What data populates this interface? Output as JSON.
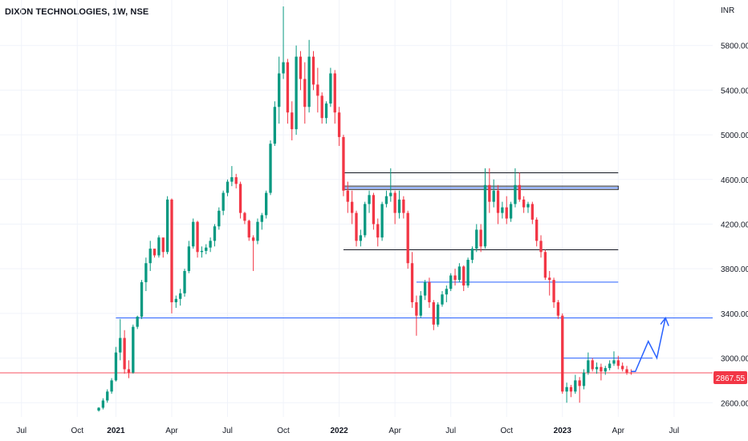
{
  "title": "DIXON TECHNOLOGIES, 1W, NSE",
  "chart_data": {
    "type": "candlestick",
    "currency": "INR",
    "last_price": "2867.55",
    "ylim": [
      2530,
      6150
    ],
    "y_ticks": [
      "5800.00",
      "5400.00",
      "5000.00",
      "4600.00",
      "4200.00",
      "3800.00",
      "3400.00",
      "3000.00",
      "2600.00"
    ],
    "y_tick_values": [
      5800,
      5400,
      5000,
      4600,
      4200,
      3800,
      3400,
      3000,
      2600
    ],
    "x_ticks": [
      {
        "label": "Jul",
        "week": -22,
        "bold": false
      },
      {
        "label": "Oct",
        "week": -9,
        "bold": false
      },
      {
        "label": "2021",
        "week": 0,
        "bold": true
      },
      {
        "label": "Apr",
        "week": 13,
        "bold": false
      },
      {
        "label": "Jul",
        "week": 26,
        "bold": false
      },
      {
        "label": "Oct",
        "week": 39,
        "bold": false
      },
      {
        "label": "2022",
        "week": 52,
        "bold": true
      },
      {
        "label": "Apr",
        "week": 65,
        "bold": false
      },
      {
        "label": "Jul",
        "week": 78,
        "bold": false
      },
      {
        "label": "Oct",
        "week": 91,
        "bold": false
      },
      {
        "label": "2023",
        "week": 104,
        "bold": true
      },
      {
        "label": "Apr",
        "week": 117,
        "bold": false
      },
      {
        "label": "Jul",
        "week": 130,
        "bold": false
      }
    ],
    "week_range": [
      -27,
      139
    ],
    "candles": [
      [
        -4,
        2530,
        2560,
        2520,
        2555
      ],
      [
        -3,
        2555,
        2640,
        2540,
        2620
      ],
      [
        -2,
        2620,
        2720,
        2600,
        2700
      ],
      [
        -1,
        2700,
        2820,
        2680,
        2800
      ],
      [
        0,
        2800,
        3100,
        2790,
        3050
      ],
      [
        1,
        3050,
        3350,
        2980,
        3180
      ],
      [
        2,
        3180,
        3250,
        2860,
        2900
      ],
      [
        3,
        2900,
        2980,
        2820,
        2870
      ],
      [
        4,
        2870,
        3300,
        2860,
        3280
      ],
      [
        5,
        3280,
        3380,
        3260,
        3370
      ],
      [
        6,
        3370,
        3700,
        3350,
        3680
      ],
      [
        7,
        3680,
        3900,
        3600,
        3850
      ],
      [
        8,
        3850,
        4050,
        3780,
        3980
      ],
      [
        9,
        3980,
        3950,
        3900,
        3920
      ],
      [
        10,
        3920,
        4100,
        3900,
        4080
      ],
      [
        11,
        4080,
        4050,
        3900,
        3950
      ],
      [
        12,
        3950,
        4450,
        3930,
        4420
      ],
      [
        13,
        4420,
        4430,
        3400,
        3500
      ],
      [
        14,
        3500,
        3560,
        3450,
        3530
      ],
      [
        15,
        3530,
        3620,
        3470,
        3580
      ],
      [
        16,
        3580,
        3800,
        3550,
        3780
      ],
      [
        17,
        3780,
        4050,
        3760,
        4000
      ],
      [
        18,
        4000,
        4250,
        3980,
        4220
      ],
      [
        19,
        4220,
        4230,
        3900,
        3950
      ],
      [
        20,
        3950,
        4000,
        3900,
        3960
      ],
      [
        21,
        3960,
        4020,
        3930,
        3990
      ],
      [
        22,
        3990,
        4080,
        3950,
        4050
      ],
      [
        23,
        4050,
        4200,
        4000,
        4180
      ],
      [
        24,
        4180,
        4350,
        4150,
        4320
      ],
      [
        25,
        4320,
        4500,
        4280,
        4480
      ],
      [
        26,
        4480,
        4600,
        4450,
        4580
      ],
      [
        27,
        4580,
        4720,
        4540,
        4620
      ],
      [
        28,
        4620,
        4650,
        4520,
        4560
      ],
      [
        29,
        4560,
        4580,
        4250,
        4300
      ],
      [
        30,
        4300,
        4310,
        4200,
        4230
      ],
      [
        31,
        4230,
        4240,
        4050,
        4080
      ],
      [
        32,
        4080,
        4100,
        3780,
        4050
      ],
      [
        33,
        4050,
        4250,
        4020,
        4220
      ],
      [
        34,
        4220,
        4300,
        4150,
        4280
      ],
      [
        35,
        4280,
        4500,
        4250,
        4480
      ],
      [
        36,
        4480,
        4950,
        4460,
        4920
      ],
      [
        37,
        4920,
        5300,
        4900,
        5250
      ],
      [
        38,
        5250,
        5700,
        5100,
        5550
      ],
      [
        39,
        5550,
        6150,
        5500,
        5650
      ],
      [
        40,
        5650,
        5680,
        5100,
        5200
      ],
      [
        41,
        5200,
        5300,
        4950,
        5050
      ],
      [
        42,
        5050,
        5800,
        5000,
        5700
      ],
      [
        43,
        5700,
        5750,
        5400,
        5500
      ],
      [
        44,
        5500,
        5650,
        5100,
        5250
      ],
      [
        45,
        5250,
        5850,
        5200,
        5700
      ],
      [
        46,
        5700,
        5750,
        5400,
        5450
      ],
      [
        47,
        5450,
        5600,
        5200,
        5350
      ],
      [
        48,
        5350,
        5380,
        5100,
        5150
      ],
      [
        49,
        5150,
        5300,
        5100,
        5280
      ],
      [
        50,
        5280,
        5600,
        5250,
        5550
      ],
      [
        51,
        5550,
        5580,
        5100,
        5200
      ],
      [
        52,
        5200,
        5250,
        4900,
        4980
      ],
      [
        53,
        4980,
        5000,
        4450,
        4500
      ],
      [
        54,
        4500,
        4580,
        4300,
        4400
      ],
      [
        55,
        4400,
        4500,
        4200,
        4300
      ],
      [
        56,
        4300,
        4320,
        4000,
        4050
      ],
      [
        57,
        4050,
        4150,
        4000,
        4100
      ],
      [
        58,
        4100,
        4400,
        4080,
        4380
      ],
      [
        59,
        4380,
        4500,
        4300,
        4460
      ],
      [
        60,
        4460,
        4480,
        4150,
        4200
      ],
      [
        61,
        4200,
        4250,
        4000,
        4080
      ],
      [
        62,
        4080,
        4400,
        4050,
        4380
      ],
      [
        63,
        4380,
        4500,
        4350,
        4450
      ],
      [
        64,
        4450,
        4700,
        4400,
        4480
      ],
      [
        65,
        4480,
        4500,
        4200,
        4300
      ],
      [
        66,
        4300,
        4500,
        4250,
        4420
      ],
      [
        67,
        4420,
        4450,
        4250,
        4300
      ],
      [
        68,
        4300,
        4320,
        3800,
        3850
      ],
      [
        69,
        3850,
        3950,
        3450,
        3500
      ],
      [
        70,
        3500,
        3560,
        3200,
        3380
      ],
      [
        71,
        3380,
        3600,
        3360,
        3560
      ],
      [
        72,
        3560,
        3700,
        3520,
        3680
      ],
      [
        73,
        3680,
        3720,
        3450,
        3500
      ],
      [
        74,
        3500,
        3520,
        3250,
        3300
      ],
      [
        75,
        3300,
        3500,
        3280,
        3480
      ],
      [
        76,
        3480,
        3600,
        3460,
        3570
      ],
      [
        77,
        3570,
        3650,
        3500,
        3620
      ],
      [
        78,
        3620,
        3760,
        3600,
        3740
      ],
      [
        79,
        3740,
        3800,
        3650,
        3700
      ],
      [
        80,
        3700,
        3850,
        3680,
        3820
      ],
      [
        81,
        3820,
        3830,
        3600,
        3650
      ],
      [
        82,
        3650,
        3900,
        3630,
        3880
      ],
      [
        83,
        3880,
        4000,
        3850,
        3980
      ],
      [
        84,
        3980,
        4200,
        3950,
        4150
      ],
      [
        85,
        4150,
        4200,
        3950,
        4000
      ],
      [
        86,
        4000,
        4700,
        3980,
        4550
      ],
      [
        87,
        4550,
        4700,
        4300,
        4400
      ],
      [
        88,
        4400,
        4600,
        4350,
        4500
      ],
      [
        89,
        4500,
        4550,
        4200,
        4300
      ],
      [
        90,
        4300,
        4400,
        4250,
        4350
      ],
      [
        91,
        4350,
        4450,
        4200,
        4250
      ],
      [
        92,
        4250,
        4400,
        4220,
        4380
      ],
      [
        93,
        4380,
        4700,
        4350,
        4550
      ],
      [
        94,
        4550,
        4660,
        4400,
        4420
      ],
      [
        95,
        4420,
        4450,
        4300,
        4350
      ],
      [
        96,
        4350,
        4400,
        4300,
        4380
      ],
      [
        97,
        4380,
        4400,
        4200,
        4240
      ],
      [
        98,
        4240,
        4260,
        4000,
        4050
      ],
      [
        99,
        4050,
        4100,
        3900,
        3950
      ],
      [
        100,
        3950,
        3970,
        3700,
        3720
      ],
      [
        101,
        3720,
        3780,
        3560,
        3700
      ],
      [
        102,
        3700,
        3720,
        3450,
        3500
      ],
      [
        103,
        3500,
        3520,
        3350,
        3380
      ],
      [
        104,
        3380,
        3400,
        2680,
        2700
      ],
      [
        105,
        2700,
        2780,
        2600,
        2740
      ],
      [
        106,
        2740,
        2760,
        2650,
        2700
      ],
      [
        107,
        2700,
        2850,
        2680,
        2800
      ],
      [
        108,
        2800,
        2830,
        2600,
        2750
      ],
      [
        109,
        2750,
        2900,
        2720,
        2870
      ],
      [
        110,
        2870,
        3050,
        2850,
        2980
      ],
      [
        111,
        2980,
        3000,
        2880,
        2900
      ],
      [
        112,
        2900,
        2960,
        2860,
        2920
      ],
      [
        113,
        2920,
        2950,
        2800,
        2880
      ],
      [
        114,
        2880,
        2930,
        2850,
        2910
      ],
      [
        115,
        2910,
        2980,
        2890,
        2950
      ],
      [
        116,
        2950,
        3060,
        2930,
        2980
      ],
      [
        117,
        2980,
        3020,
        2900,
        2930
      ],
      [
        118,
        2930,
        2960,
        2880,
        2900
      ],
      [
        119,
        2900,
        2930,
        2850,
        2870
      ],
      [
        120,
        2870,
        2900,
        2850,
        2868
      ]
    ],
    "horizontal_lines": [
      {
        "y": 3360,
        "from": 0,
        "to": 139,
        "color": "#2962ff"
      },
      {
        "y": 3680,
        "from": 70,
        "to": 117,
        "color": "#2962ff"
      },
      {
        "y": 3000,
        "from": 104,
        "to": 125,
        "color": "#2962ff"
      },
      {
        "y": 2867.55,
        "from": -27,
        "to": 139,
        "color": "#f7525f"
      },
      {
        "y": 3970,
        "from": 53,
        "to": 117,
        "color": "#131722"
      },
      {
        "y": 4660,
        "from": 53,
        "to": 117,
        "color": "#131722"
      }
    ],
    "zone_box": {
      "from": 53,
      "to": 117,
      "y_top": 4540,
      "y_bottom": 4510,
      "color": "#131722",
      "inner": "#2962ff"
    },
    "projection_path": [
      [
        120,
        2880
      ],
      [
        121,
        2880
      ],
      [
        124,
        3150
      ],
      [
        126,
        3000
      ],
      [
        128,
        3360
      ]
    ],
    "colors": {
      "up": "#089981",
      "down": "#f23645",
      "label_bg": "#f23645"
    }
  }
}
